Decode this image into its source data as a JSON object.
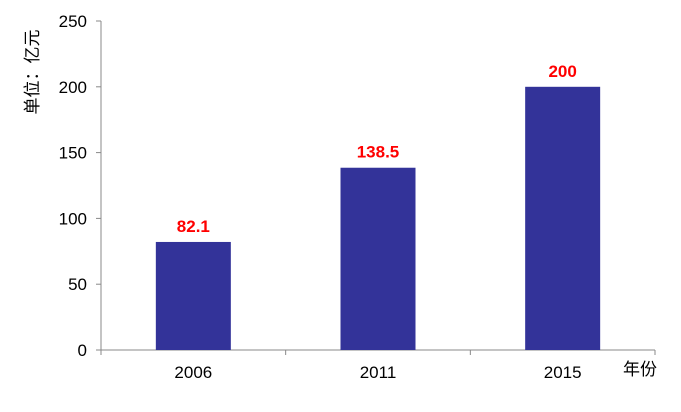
{
  "chart_data": {
    "type": "bar",
    "title": "",
    "categories": [
      "2006",
      "2011",
      "2015"
    ],
    "values": [
      82.1,
      138.5,
      200
    ],
    "data_labels": [
      "82.1",
      "138.5",
      "200"
    ],
    "ylabel": "单位：亿元",
    "xlabel": "年份",
    "ylim": [
      0,
      250
    ],
    "yticks": [
      "0",
      "50",
      "100",
      "150",
      "200",
      "250"
    ],
    "grid": false,
    "legend": "none",
    "colors": {
      "bar": "#333399",
      "data_label": "#ff0000",
      "axis": "#888888"
    }
  }
}
